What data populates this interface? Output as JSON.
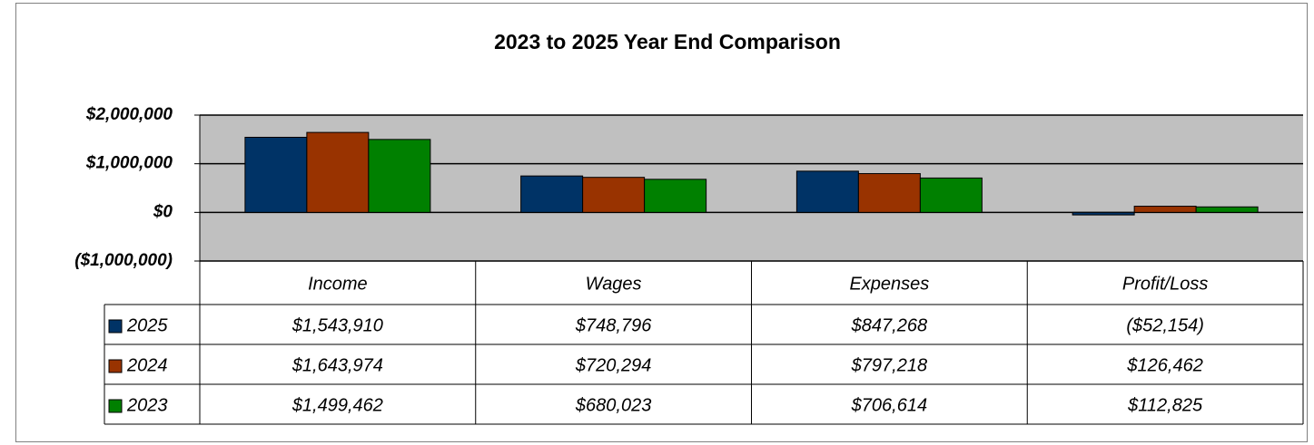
{
  "chart_data": {
    "type": "bar",
    "title": "2023 to 2025 Year End Comparison",
    "categories": [
      "Income",
      "Wages",
      "Expenses",
      "Profit/Loss"
    ],
    "series": [
      {
        "name": "2025",
        "color": "#003366",
        "values": [
          1543910,
          748796,
          847268,
          -52154
        ],
        "value_labels": [
          "$1,543,910",
          "$748,796",
          "$847,268",
          "($52,154)"
        ]
      },
      {
        "name": "2024",
        "color": "#993300",
        "values": [
          1643974,
          720294,
          797218,
          126462
        ],
        "value_labels": [
          "$1,643,974",
          "$720,294",
          "$797,218",
          "$126,462"
        ]
      },
      {
        "name": "2023",
        "color": "#008000",
        "values": [
          1499462,
          680023,
          706614,
          112825
        ],
        "value_labels": [
          "$1,499,462",
          "$680,023",
          "$706,614",
          "$112,825"
        ]
      }
    ],
    "ylim": [
      -1000000,
      2000000
    ],
    "yticks": [
      {
        "value": -1000000,
        "label": "($1,000,000)"
      },
      {
        "value": 0,
        "label": "$0"
      },
      {
        "value": 1000000,
        "label": "$1,000,000"
      },
      {
        "value": 2000000,
        "label": "$2,000,000"
      }
    ],
    "grid": true,
    "plot_background": "#c0c0c0"
  }
}
